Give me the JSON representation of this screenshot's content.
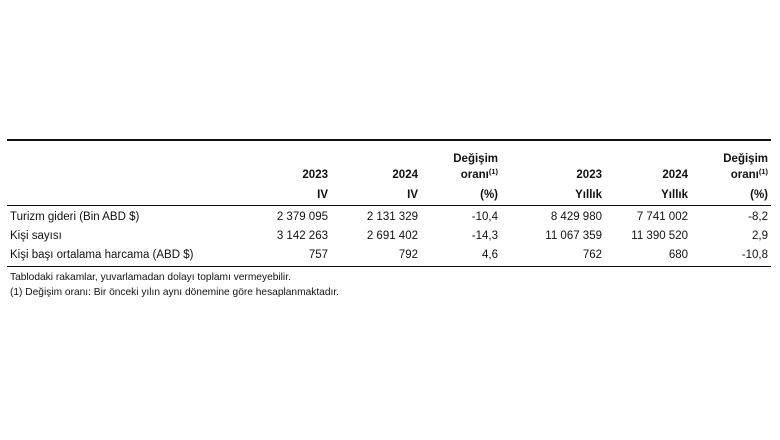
{
  "table": {
    "columns": [
      {
        "year": "2023",
        "period": "IV"
      },
      {
        "year": "2024",
        "period": "IV"
      },
      {
        "change_title": "Değişim",
        "change_sub": "oranı",
        "note_ref": "(1)",
        "unit": "(%)"
      },
      {
        "year": "2023",
        "period": "Yıllık"
      },
      {
        "year": "2024",
        "period": "Yıllık"
      },
      {
        "change_title": "Değişim",
        "change_sub": "oranı",
        "note_ref": "(1)",
        "unit": "(%)"
      }
    ],
    "rows": [
      {
        "label": "Turizm gideri (Bin ABD $)",
        "values": [
          "2 379 095",
          "2 131 329",
          "-10,4",
          "8 429 980",
          "7 741 002",
          "-8,2"
        ]
      },
      {
        "label": "Kişi sayısı",
        "values": [
          "3 142 263",
          "2 691 402",
          "-14,3",
          "11 067 359",
          "11 390 520",
          "2,9"
        ]
      },
      {
        "label": "Kişi başı ortalama harcama (ABD $)",
        "values": [
          "757",
          "792",
          "4,6",
          "762",
          "680",
          "-10,8"
        ]
      }
    ]
  },
  "notes": [
    "Tablodaki rakamlar, yuvarlamadan dolayı toplamı vermeyebilir.",
    "(1) Değişim oranı: Bir önceki yılın aynı dönemine göre hesaplanmaktadır."
  ]
}
